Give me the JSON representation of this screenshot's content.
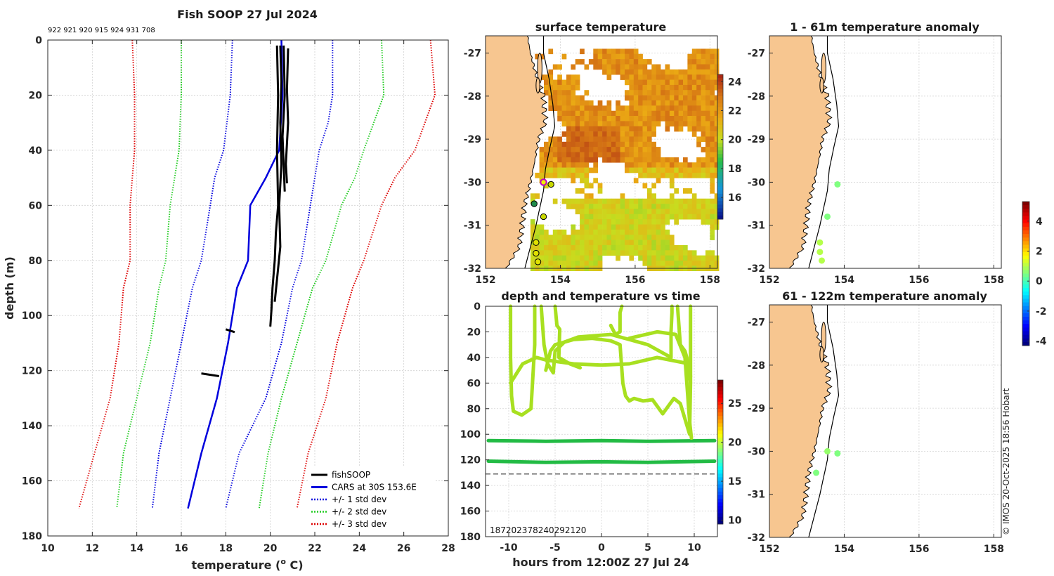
{
  "figure": {
    "credit": "© IMOS 20-Oct-2025 18:56 Hobart",
    "colors": {
      "land": "#f7c690",
      "coast": "#000000",
      "gray_grid": "#d9d9d9"
    }
  },
  "chart_data": [
    {
      "id": "profile",
      "type": "line",
      "title": "Fish SOOP 27 Jul 2024",
      "subtitle": "922 921 920 915 924 931 708",
      "xlabel": "temperature (o C)",
      "xlabel_prefix": "temperature (",
      "xlabel_sup": "o",
      "xlabel_suffix": " C)",
      "ylabel": "depth (m)",
      "xlim": [
        10,
        28
      ],
      "ylim": [
        180,
        0
      ],
      "xticks": [
        10,
        12,
        14,
        16,
        18,
        20,
        22,
        24,
        26,
        28
      ],
      "yticks": [
        0,
        20,
        40,
        60,
        80,
        100,
        120,
        140,
        160,
        180
      ],
      "grid": true,
      "legend_position": "bottom-right",
      "legend": [
        {
          "label": "fishSOOP",
          "color": "#000000",
          "style": "solid"
        },
        {
          "label": "CARS at 30S 153.6E",
          "color": "#0000dd",
          "style": "solid"
        },
        {
          "label": "+/- 1 std dev",
          "color": "#0000dd",
          "style": "dotted"
        },
        {
          "label": "+/- 2 std dev",
          "color": "#22cc22",
          "style": "dotted"
        },
        {
          "label": "+/- 3 std dev",
          "color": "#dd0000",
          "style": "dotted"
        }
      ],
      "series": [
        {
          "name": "CARS at 30S 153.6E",
          "color": "#0000dd",
          "style": "solid",
          "x": [
            20.5,
            20.55,
            20.4,
            19.8,
            19.1,
            19.0,
            18.5,
            18.1,
            17.6,
            16.9,
            16.3
          ],
          "y": [
            0,
            20,
            40,
            50,
            60,
            80,
            90,
            110,
            130,
            150,
            170
          ]
        },
        {
          "name": "-1 std",
          "color": "#0000dd",
          "style": "dotted",
          "x": [
            18.3,
            18.2,
            17.9,
            17.5,
            17.3,
            16.9,
            16.5,
            16.0,
            15.5,
            15.0,
            14.7
          ],
          "y": [
            0,
            20,
            40,
            50,
            60,
            80,
            90,
            110,
            130,
            150,
            170
          ]
        },
        {
          "name": "+1 std",
          "color": "#0000dd",
          "style": "dotted",
          "x": [
            22.8,
            22.8,
            22.6,
            22.2,
            21.8,
            21.4,
            21.0,
            20.5,
            19.8,
            18.6,
            18.0
          ],
          "y": [
            0,
            20,
            30,
            40,
            60,
            80,
            90,
            110,
            130,
            150,
            170
          ]
        },
        {
          "name": "-2 std",
          "color": "#22cc22",
          "style": "dotted",
          "x": [
            16.0,
            16.0,
            15.9,
            15.7,
            15.5,
            15.3,
            15.0,
            14.6,
            14.0,
            13.4,
            13.1
          ],
          "y": [
            0,
            20,
            40,
            50,
            60,
            80,
            90,
            110,
            130,
            150,
            170
          ]
        },
        {
          "name": "+2 std",
          "color": "#22cc22",
          "style": "dotted",
          "x": [
            25.0,
            25.1,
            24.2,
            23.8,
            23.2,
            22.5,
            21.9,
            21.2,
            20.5,
            19.9,
            19.5
          ],
          "y": [
            0,
            20,
            40,
            50,
            60,
            80,
            90,
            110,
            130,
            150,
            170
          ]
        },
        {
          "name": "-3 std",
          "color": "#dd0000",
          "style": "dotted",
          "x": [
            13.8,
            13.9,
            13.9,
            13.8,
            13.7,
            13.7,
            13.4,
            13.2,
            12.8,
            12.1,
            11.4
          ],
          "y": [
            0,
            20,
            40,
            50,
            60,
            80,
            90,
            110,
            130,
            150,
            170
          ]
        },
        {
          "name": "+3 std",
          "color": "#dd0000",
          "style": "dotted",
          "x": [
            27.2,
            27.4,
            26.5,
            25.6,
            25.0,
            24.2,
            23.7,
            23.0,
            22.5,
            21.7,
            21.2
          ],
          "y": [
            0,
            20,
            40,
            50,
            60,
            80,
            90,
            110,
            130,
            150,
            170
          ]
        },
        {
          "name": "fishSOOP cast 1",
          "color": "#000000",
          "style": "solid",
          "x": [
            20.3,
            20.35,
            20.3,
            20.35,
            20.25,
            20.2,
            20.1,
            20.05,
            20.0
          ],
          "y": [
            2,
            20,
            40,
            60,
            70,
            80,
            90,
            98,
            104
          ]
        },
        {
          "name": "fishSOOP cast 2",
          "color": "#000000",
          "style": "solid",
          "x": [
            20.45,
            20.5,
            20.45,
            20.5,
            20.4,
            20.45,
            20.2
          ],
          "y": [
            2,
            15,
            30,
            45,
            60,
            75,
            95
          ]
        },
        {
          "name": "fishSOOP cast 3",
          "color": "#000000",
          "style": "solid",
          "x": [
            20.6,
            20.65,
            20.55,
            20.6,
            20.65
          ],
          "y": [
            2,
            20,
            35,
            45,
            55
          ]
        },
        {
          "name": "fishSOOP cast 4",
          "color": "#000000",
          "style": "solid",
          "x": [
            20.8,
            20.75,
            20.8,
            20.7,
            20.75
          ],
          "y": [
            3,
            18,
            30,
            45,
            52
          ]
        },
        {
          "name": "fishSOOP cast 5",
          "color": "#000000",
          "style": "solid",
          "x": [
            18.0,
            18.4
          ],
          "y": [
            105,
            106
          ]
        },
        {
          "name": "fishSOOP cast 6",
          "color": "#000000",
          "style": "solid",
          "x": [
            16.9,
            17.7
          ],
          "y": [
            121,
            122
          ]
        }
      ]
    },
    {
      "id": "sst",
      "type": "heatmap",
      "title": "surface temperature",
      "xlim": [
        152,
        158.2
      ],
      "ylim": [
        -32,
        -26.6
      ],
      "xticks": [
        152,
        154,
        156,
        158
      ],
      "yticks": [
        -27,
        -28,
        -29,
        -30,
        -31,
        -32
      ],
      "colorbar": {
        "min": 14.5,
        "max": 24.5,
        "ticks": [
          24,
          22,
          20,
          18,
          16
        ]
      },
      "stations": [
        {
          "lon": 153.55,
          "lat": -30.0,
          "color": "#f0f000",
          "edge": "#c000c0"
        },
        {
          "lon": 153.75,
          "lat": -30.05,
          "color": "#c8d800",
          "edge": "#000"
        },
        {
          "lon": 153.3,
          "lat": -30.5,
          "color": "#1e8a4a",
          "edge": "#000"
        },
        {
          "lon": 153.55,
          "lat": -30.8,
          "color": "#c8d800",
          "edge": "#000"
        },
        {
          "lon": 153.35,
          "lat": -31.4,
          "color": "#e0e000",
          "edge": "#000"
        },
        {
          "lon": 153.35,
          "lat": -31.65,
          "color": "#e0e000",
          "edge": "#000"
        },
        {
          "lon": 153.4,
          "lat": -31.85,
          "color": "#e0e000",
          "edge": "#000"
        }
      ]
    },
    {
      "id": "anom_shallow",
      "type": "scatter",
      "title": "1 - 61m temperature anomaly",
      "xlim": [
        152,
        158.2
      ],
      "ylim": [
        -32,
        -26.6
      ],
      "xticks": [
        152,
        154,
        156,
        158
      ],
      "yticks": [
        -27,
        -28,
        -29,
        -30,
        -31,
        -32
      ],
      "points": [
        {
          "lon": 153.82,
          "lat": -30.05,
          "value": 0.5
        },
        {
          "lon": 153.55,
          "lat": -30.8,
          "value": 0.5
        },
        {
          "lon": 153.35,
          "lat": -31.4,
          "value": 1.0
        },
        {
          "lon": 153.35,
          "lat": -31.62,
          "value": 1.0
        },
        {
          "lon": 153.4,
          "lat": -31.82,
          "value": 1.0
        }
      ]
    },
    {
      "id": "anom_deep",
      "type": "scatter",
      "title": "61 - 122m temperature anomaly",
      "xlim": [
        152,
        158.2
      ],
      "ylim": [
        -32,
        -26.6
      ],
      "xticks": [
        152,
        154,
        156,
        158
      ],
      "yticks": [
        -27,
        -28,
        -29,
        -30,
        -31,
        -32
      ],
      "points": [
        {
          "lon": 153.55,
          "lat": -30.0,
          "value": 0.7
        },
        {
          "lon": 153.82,
          "lat": -30.05,
          "value": 0.5
        },
        {
          "lon": 153.25,
          "lat": -30.5,
          "value": 0.5
        }
      ],
      "colorbar": {
        "min": -4.3,
        "max": 5.3,
        "ticks": [
          4,
          2,
          0,
          -2,
          -4
        ]
      }
    },
    {
      "id": "timeseries",
      "type": "scatter",
      "title": "depth and temperature vs time",
      "xlabel": "hours from 12:00Z 27 Jul 24",
      "xlim": [
        -12.5,
        12.5
      ],
      "ylim": [
        180,
        0
      ],
      "xticks": [
        -10,
        -5,
        0,
        5,
        10
      ],
      "yticks": [
        0,
        20,
        40,
        60,
        80,
        100,
        120,
        140,
        160,
        180
      ],
      "reference_depth": 131,
      "cast_ids_text": "187202378240292120",
      "colorbar": {
        "min": 9.5,
        "max": 28,
        "ticks": [
          25,
          20,
          15,
          10
        ]
      },
      "tracks": [
        {
          "name": "deep 1",
          "color": "#22bb44",
          "x": [
            -12.2,
            -6,
            0,
            5,
            12.2
          ],
          "y": [
            105,
            105.5,
            105,
            105.5,
            105
          ]
        },
        {
          "name": "deep 2",
          "color": "#22bb44",
          "x": [
            -12.2,
            -6,
            0,
            5,
            12.2
          ],
          "y": [
            121,
            122,
            121.5,
            122,
            121
          ]
        },
        {
          "name": "A",
          "color": "#a8e020",
          "x": [
            -9.8,
            -9.8,
            -9.7,
            -9.5,
            -8.6,
            -7.6,
            -7.2,
            -7.2
          ],
          "y": [
            0,
            40,
            70,
            82,
            85,
            80,
            30,
            0
          ]
        },
        {
          "name": "B",
          "color": "#a8e020",
          "x": [
            -9.8,
            -8.5,
            -7,
            -6,
            -5,
            -3,
            0,
            3,
            6,
            9.5,
            9.6
          ],
          "y": [
            60,
            45,
            40,
            42,
            43,
            45,
            46,
            45,
            40,
            45,
            55
          ]
        },
        {
          "name": "C",
          "color": "#a8e020",
          "x": [
            -6.5,
            -6.2,
            -5.8,
            -5.2,
            -5.0,
            -4.0,
            -2.5,
            1.0,
            5.0,
            7.5,
            7.5,
            7.6,
            7.6
          ],
          "y": [
            0,
            30,
            45,
            52,
            35,
            28,
            24,
            22,
            30,
            40,
            20,
            5,
            0
          ]
        },
        {
          "name": "D",
          "color": "#a8e020",
          "x": [
            -6.0,
            -5.5,
            -5.0,
            -3.0,
            -1.0,
            1.0,
            2.0,
            2.3,
            2.6,
            3.0,
            3.5,
            4.5,
            5.5,
            6.0,
            6.6,
            7.0,
            7.8,
            8.5,
            9.0,
            9.5,
            9.6,
            9.6
          ],
          "y": [
            50,
            35,
            30,
            26,
            25,
            27,
            30,
            60,
            70,
            74,
            72,
            74,
            73,
            78,
            84,
            80,
            72,
            76,
            88,
            100,
            60,
            0
          ]
        },
        {
          "name": "E",
          "color": "#a8e020",
          "x": [
            -5.0,
            -4.8,
            -4.5,
            -4.6,
            -3.4,
            -2.3
          ],
          "y": [
            0,
            15,
            18,
            40,
            45,
            48
          ]
        },
        {
          "name": "F",
          "color": "#a8e020",
          "x": [
            1.0,
            1.5,
            2.0,
            2.0,
            2.2
          ],
          "y": [
            15,
            22,
            20,
            5,
            0
          ]
        },
        {
          "name": "G",
          "color": "#a8e020",
          "x": [
            3.0,
            6.0,
            8.0,
            9.0,
            9.5,
            9.7
          ],
          "y": [
            25,
            20,
            22,
            40,
            90,
            103
          ]
        },
        {
          "name": "H",
          "color": "#a8e020",
          "x": [
            8.2,
            8.5,
            9.0,
            9.2,
            9.6
          ],
          "y": [
            0,
            30,
            35,
            40,
            60
          ]
        }
      ]
    }
  ]
}
